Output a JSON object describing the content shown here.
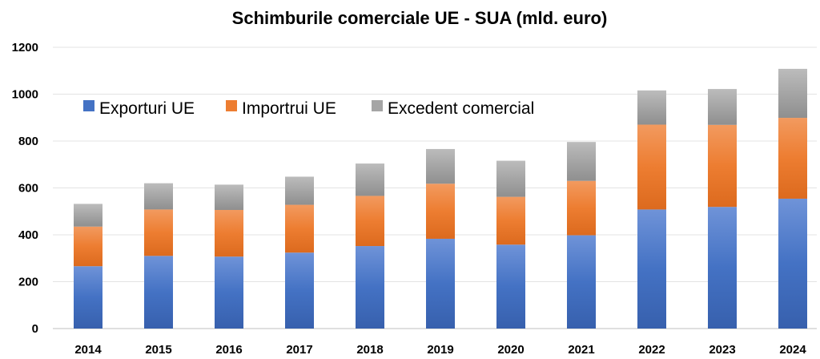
{
  "chart_data": {
    "type": "bar",
    "stacked": true,
    "title": "Schimburile comerciale UE - SUA (mld. euro)",
    "categories": [
      "2014",
      "2015",
      "2016",
      "2017",
      "2018",
      "2019",
      "2020",
      "2021",
      "2022",
      "2023",
      "2024"
    ],
    "series": [
      {
        "name": "Exporturi UE",
        "color": "#4472c4",
        "values": [
          266,
          310,
          307,
          324,
          352,
          383,
          358,
          398,
          508,
          519,
          554
        ]
      },
      {
        "name": "Importrui UE",
        "color": "#ed7d31",
        "values": [
          169,
          198,
          199,
          204,
          214,
          235,
          204,
          232,
          362,
          350,
          345
        ]
      },
      {
        "name": "Excedent comercial",
        "color": "#a5a5a5",
        "values": [
          97,
          112,
          108,
          120,
          138,
          148,
          154,
          166,
          146,
          153,
          209
        ]
      }
    ],
    "ylim": [
      0,
      1200
    ],
    "yticks": [
      0,
      200,
      400,
      600,
      800,
      1000,
      1200
    ],
    "grid": true,
    "legend": "top-left"
  }
}
